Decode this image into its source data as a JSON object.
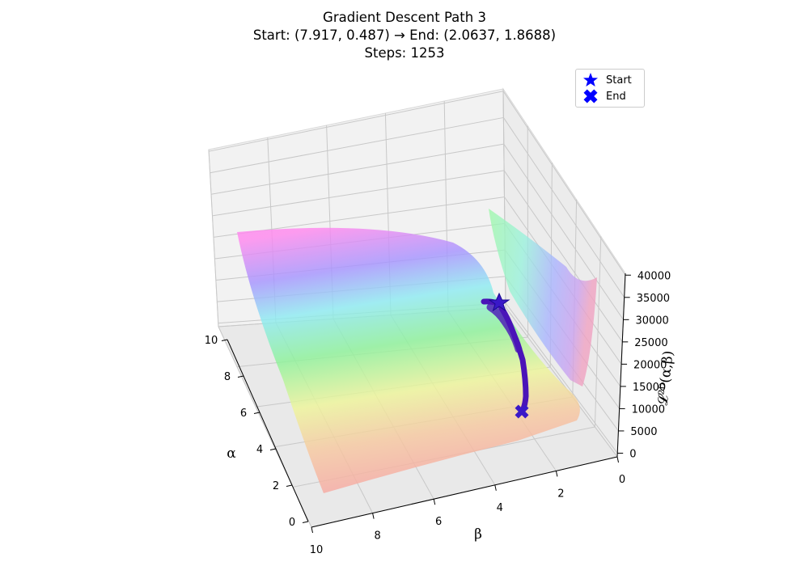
{
  "chart_data": {
    "type": "surface3d",
    "title_lines": [
      "Gradient Descent Path 3",
      "Start: (7.917, 0.487) → End: (2.0637, 1.8688)",
      "Steps: 1253"
    ],
    "xlabel": "α",
    "ylabel": "β",
    "zlabel": "𝓛²ᴰ(α,β)",
    "alpha_ticks": [
      "0",
      "2",
      "4",
      "6",
      "8",
      "10"
    ],
    "beta_ticks": [
      "0",
      "2",
      "4",
      "6",
      "8",
      "10"
    ],
    "z_ticks": [
      "0",
      "5000",
      "10000",
      "15000",
      "20000",
      "25000",
      "30000",
      "35000",
      "40000"
    ],
    "alpha_range": [
      0,
      10
    ],
    "beta_range": [
      0,
      10
    ],
    "z_range": [
      0,
      40000
    ],
    "path": {
      "start": [
        7.917,
        0.487
      ],
      "end": [
        2.0637,
        1.8688
      ],
      "steps": 1253,
      "color": "#4a14b8"
    },
    "legend": [
      {
        "label": "Start",
        "marker": "star",
        "color": "#0000ff"
      },
      {
        "label": "End",
        "marker": "x-filled",
        "color": "#0000ff"
      }
    ],
    "legend_placement": "top-right",
    "colormap": "gist_rainbow (translucent)",
    "grid": true
  }
}
